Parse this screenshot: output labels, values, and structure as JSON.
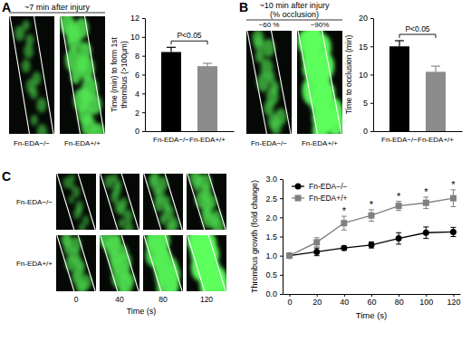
{
  "chart_data": [
    {
      "type": "bar",
      "title": "A",
      "subtitle": "~7 min after injury",
      "image_labels": [
        "Fn-EDA−/−",
        "Fn-EDA+/+"
      ],
      "categories": [
        "Fn-EDA−/−",
        "Fn-EDA+/+"
      ],
      "values": [
        8.4,
        6.9
      ],
      "errors": [
        0.5,
        0.3
      ],
      "colors": [
        "#000000",
        "#8c8c8c"
      ],
      "y_label": [
        "Time (min) to form 1st",
        "thrombus (>100μm)"
      ],
      "ylim": [
        0,
        12
      ],
      "yticks": [
        0,
        2,
        4,
        6,
        8,
        10,
        12
      ],
      "annotations": [
        "P<0.05"
      ]
    },
    {
      "type": "bar",
      "title": "B",
      "subtitle": [
        "~10 min after injury",
        "(% occlusion)"
      ],
      "image_labels": [
        "Fn-EDA−/−",
        "Fn-EDA+/+"
      ],
      "image_values": [
        "~60 %",
        "~90%"
      ],
      "categories": [
        "Fn-EDA−/−",
        "Fn-EDA+/+"
      ],
      "values": [
        15,
        10.5
      ],
      "errors": [
        1.0,
        1.0
      ],
      "colors": [
        "#000000",
        "#8c8c8c"
      ],
      "y_label": [
        "Time to occlusion (min)"
      ],
      "ylim": [
        0,
        20
      ],
      "yticks": [
        0,
        5,
        10,
        15,
        20
      ],
      "annotations": [
        "P<0.05"
      ]
    },
    {
      "type": "line",
      "title": "C",
      "image_labels": [
        "Fn-EDA−/−",
        "Fn-EDA+/+"
      ],
      "image_times": [
        0,
        40,
        80,
        120
      ],
      "image_x_label": "Time (s)",
      "x": [
        0,
        20,
        40,
        60,
        80,
        100,
        120
      ],
      "series": [
        {
          "name": "Fn-EDA−/−",
          "color": "#000000",
          "marker": "circle",
          "line_style": "solid",
          "values": [
            1.0,
            1.1,
            1.2,
            1.28,
            1.45,
            1.6,
            1.62
          ],
          "errors": [
            0,
            0.1,
            0.05,
            0.08,
            0.15,
            0.15,
            0.12
          ]
        },
        {
          "name": "Fn-EDA+/+",
          "color": "#808080",
          "marker": "square",
          "line_style": "solid",
          "values": [
            1.0,
            1.35,
            1.85,
            2.05,
            2.3,
            2.38,
            2.5
          ],
          "errors": [
            0,
            0.12,
            0.18,
            0.15,
            0.12,
            0.15,
            0.22
          ]
        }
      ],
      "x_label": "Time (s)",
      "y_label": "Thrombus growth (fold change)",
      "xlim": [
        -5,
        125
      ],
      "xticks": [
        0,
        20,
        40,
        60,
        80,
        100,
        120
      ],
      "ylim": [
        0,
        3
      ],
      "yticks": [
        {
          "value": 0,
          "label": "0.0"
        },
        0.5,
        {
          "value": 1,
          "label": "1.0"
        },
        1.5,
        {
          "value": 2,
          "label": "2.0"
        },
        2.5,
        {
          "value": 3,
          "label": "3.0"
        }
      ],
      "legend": "upper left",
      "annotations": [
        {
          "text": "*",
          "x": 40
        },
        {
          "text": "*",
          "x": 60
        },
        {
          "text": "*",
          "x": 80
        },
        {
          "text": "*",
          "x": 100
        },
        {
          "text": "*",
          "x": 120
        }
      ]
    }
  ]
}
